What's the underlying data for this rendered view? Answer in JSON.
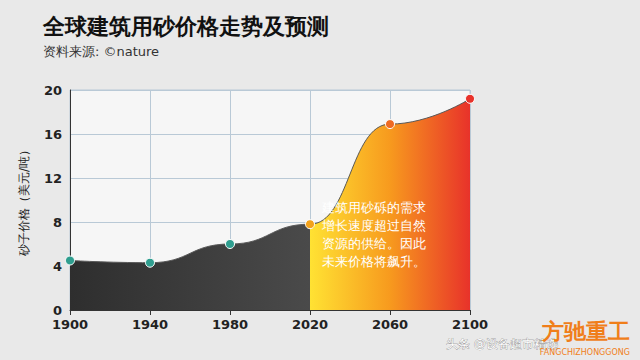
{
  "chart_data": {
    "type": "line",
    "title": "全球建筑用砂价格走势及预测",
    "subtitle": "资料来源: ©nature",
    "y_label": "砂子价格（美元/吨）",
    "x": [
      1900,
      1940,
      1980,
      2020,
      2060,
      2100
    ],
    "values": [
      4.5,
      4.3,
      6.0,
      7.8,
      16.9,
      19.2
    ],
    "xlim": [
      1900,
      2100
    ],
    "xticks": [
      1900,
      1940,
      1980,
      2020,
      2060,
      2100
    ],
    "ylim": [
      0,
      20
    ],
    "yticks": [
      0,
      4,
      8,
      12,
      16,
      20
    ],
    "grid": true,
    "marker": "circle",
    "annotation": "建筑用砂砾的需求\n增长速度超过自然\n资源的供给。因此\n未来价格将飙升。",
    "watermark": "头条 @设备超市精选",
    "logo": "方驰重工",
    "logo_subtitle": "FANGCHIZHONGGONG"
  }
}
